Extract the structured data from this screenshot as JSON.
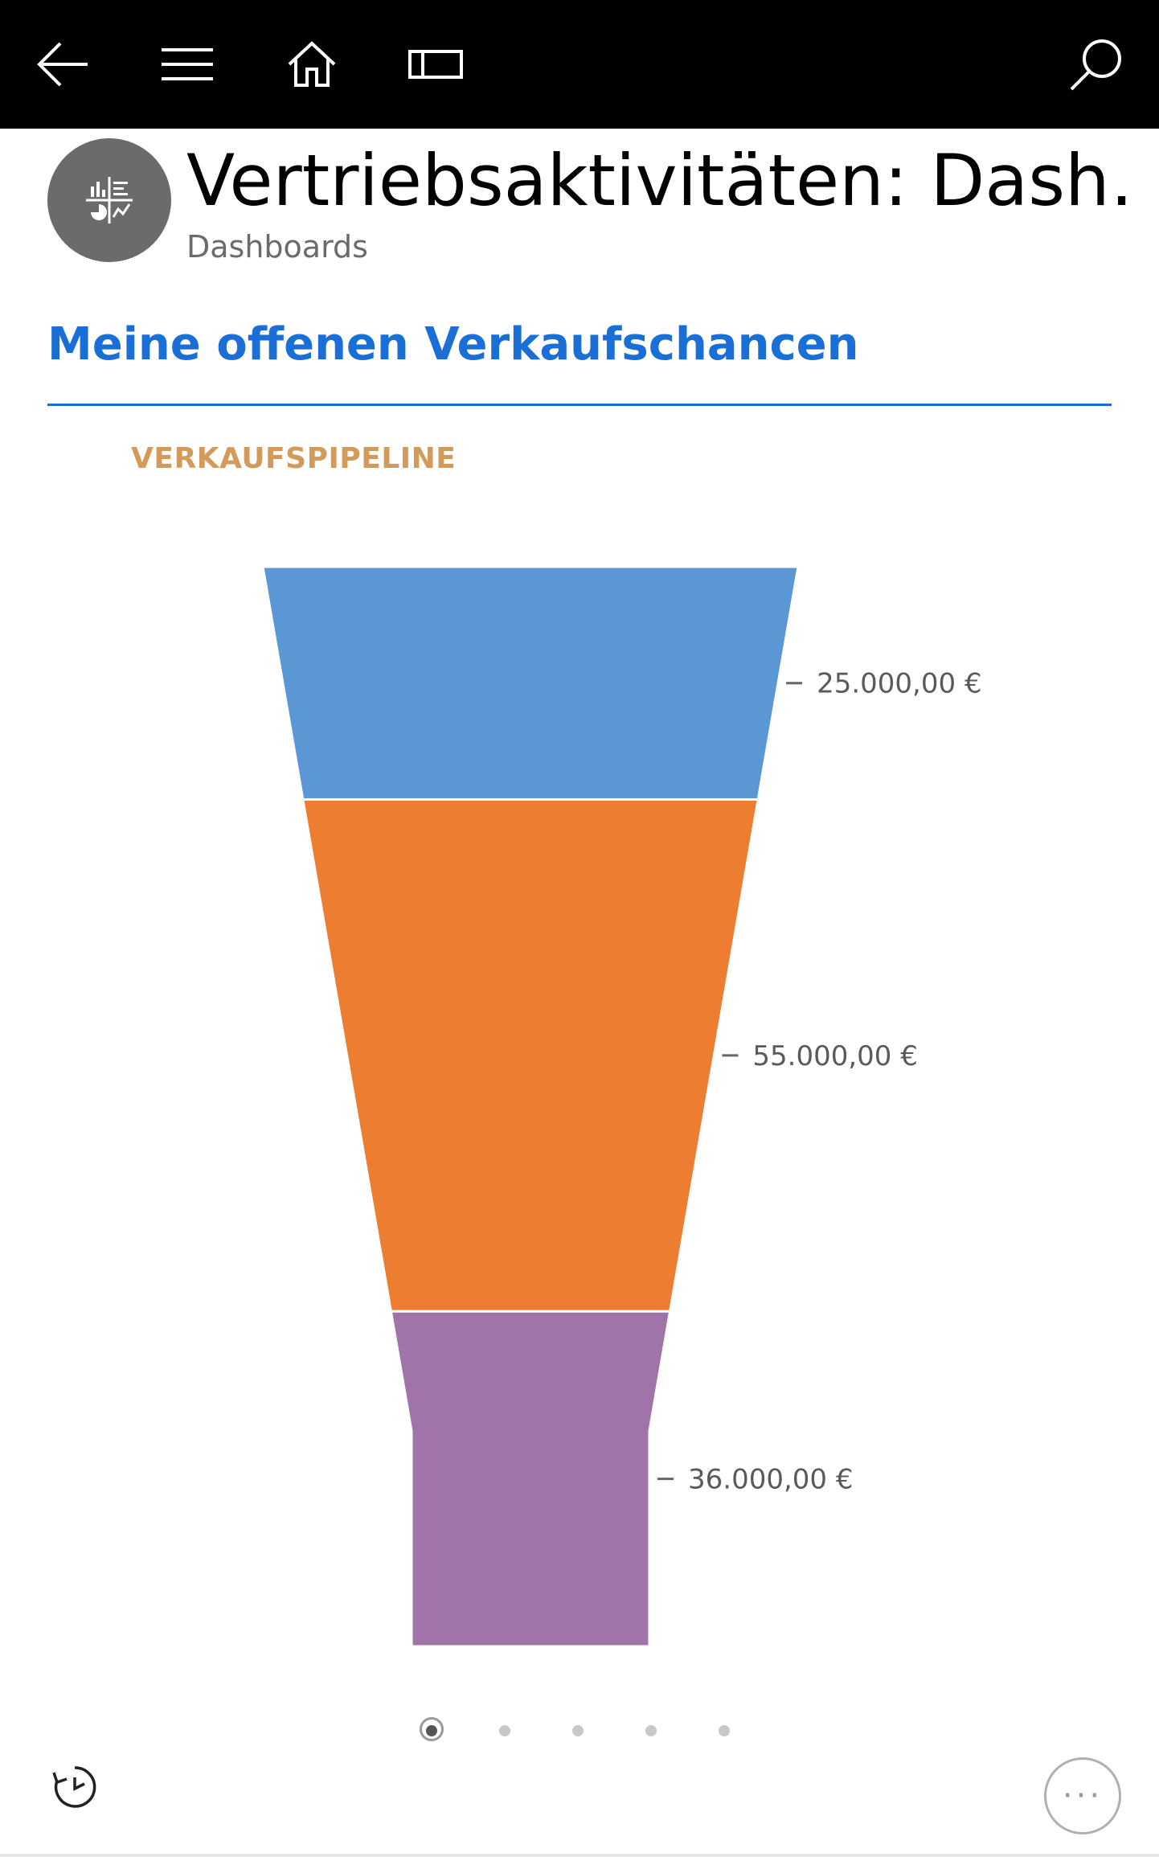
{
  "header": {
    "title": "Vertriebsaktivitäten: Dash…",
    "subtitle": "Dashboards",
    "avatar_icon": "dashboard-icon"
  },
  "navbar": {
    "back_icon": "back-arrow-icon",
    "menu_icon": "hamburger-menu-icon",
    "home_icon": "home-icon",
    "panel_icon": "panel-icon",
    "search_icon": "search-icon"
  },
  "section": {
    "title": "Meine offenen Verkaufschancen"
  },
  "chart_data": {
    "type": "funnel",
    "title": "VERKAUFSPIPELINE",
    "stages": [
      {
        "value": 25000,
        "label": "25.000,00 €",
        "color": "#5b97d5"
      },
      {
        "value": 55000,
        "label": "55.000,00 €",
        "color": "#ed7d31"
      },
      {
        "value": 36000,
        "label": "36.000,00 €",
        "color": "#a074a8"
      }
    ]
  },
  "pager": {
    "count": 5,
    "active_index": 0
  },
  "footer": {
    "refresh_icon": "refresh-clock-icon",
    "more_label": "···"
  },
  "colors": {
    "accent": "#1a6fd6",
    "chart_title": "#d39a5b",
    "topbar": "#000000",
    "avatar": "#6b6b6b"
  }
}
